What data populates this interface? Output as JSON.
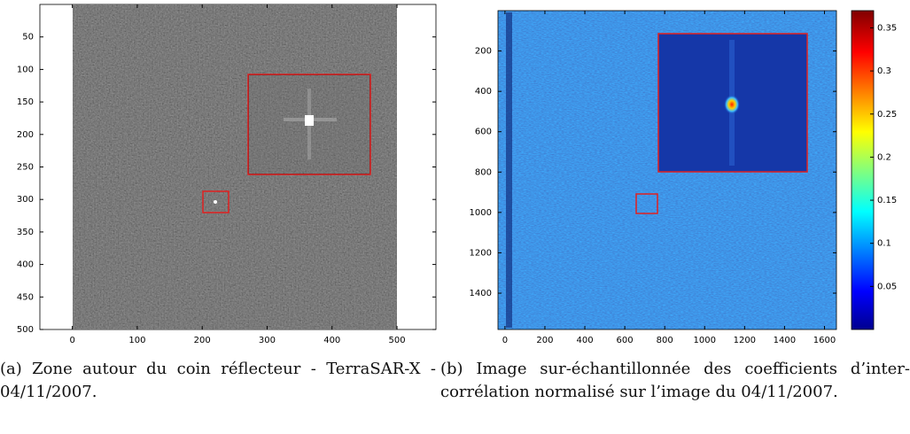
{
  "panels": [
    {
      "xlim": [
        -50,
        560
      ],
      "ylim": [
        0,
        500
      ],
      "xticks": [
        0,
        100,
        200,
        300,
        400,
        500
      ],
      "yticks": [
        50,
        100,
        150,
        200,
        250,
        300,
        350,
        400,
        450,
        500
      ],
      "caption": "(a) Zone autour du coin réflecteur - TerraSAR-X - 04/11/2007."
    },
    {
      "xlim": [
        -35,
        1660
      ],
      "ylim": [
        0,
        1580
      ],
      "xticks": [
        0,
        200,
        400,
        600,
        800,
        1000,
        1200,
        1400,
        1600
      ],
      "yticks": [
        200,
        400,
        600,
        800,
        1000,
        1200,
        1400
      ],
      "clim": [
        0,
        0.37
      ],
      "colorbar_ticks": [
        0.05,
        0.1,
        0.15,
        0.2,
        0.25,
        0.3,
        0.35
      ],
      "caption": "(b) Image sur-échantillonnée des coefficients d’inter-corrélation normalisé sur l’image du 04/11/2007."
    }
  ]
}
